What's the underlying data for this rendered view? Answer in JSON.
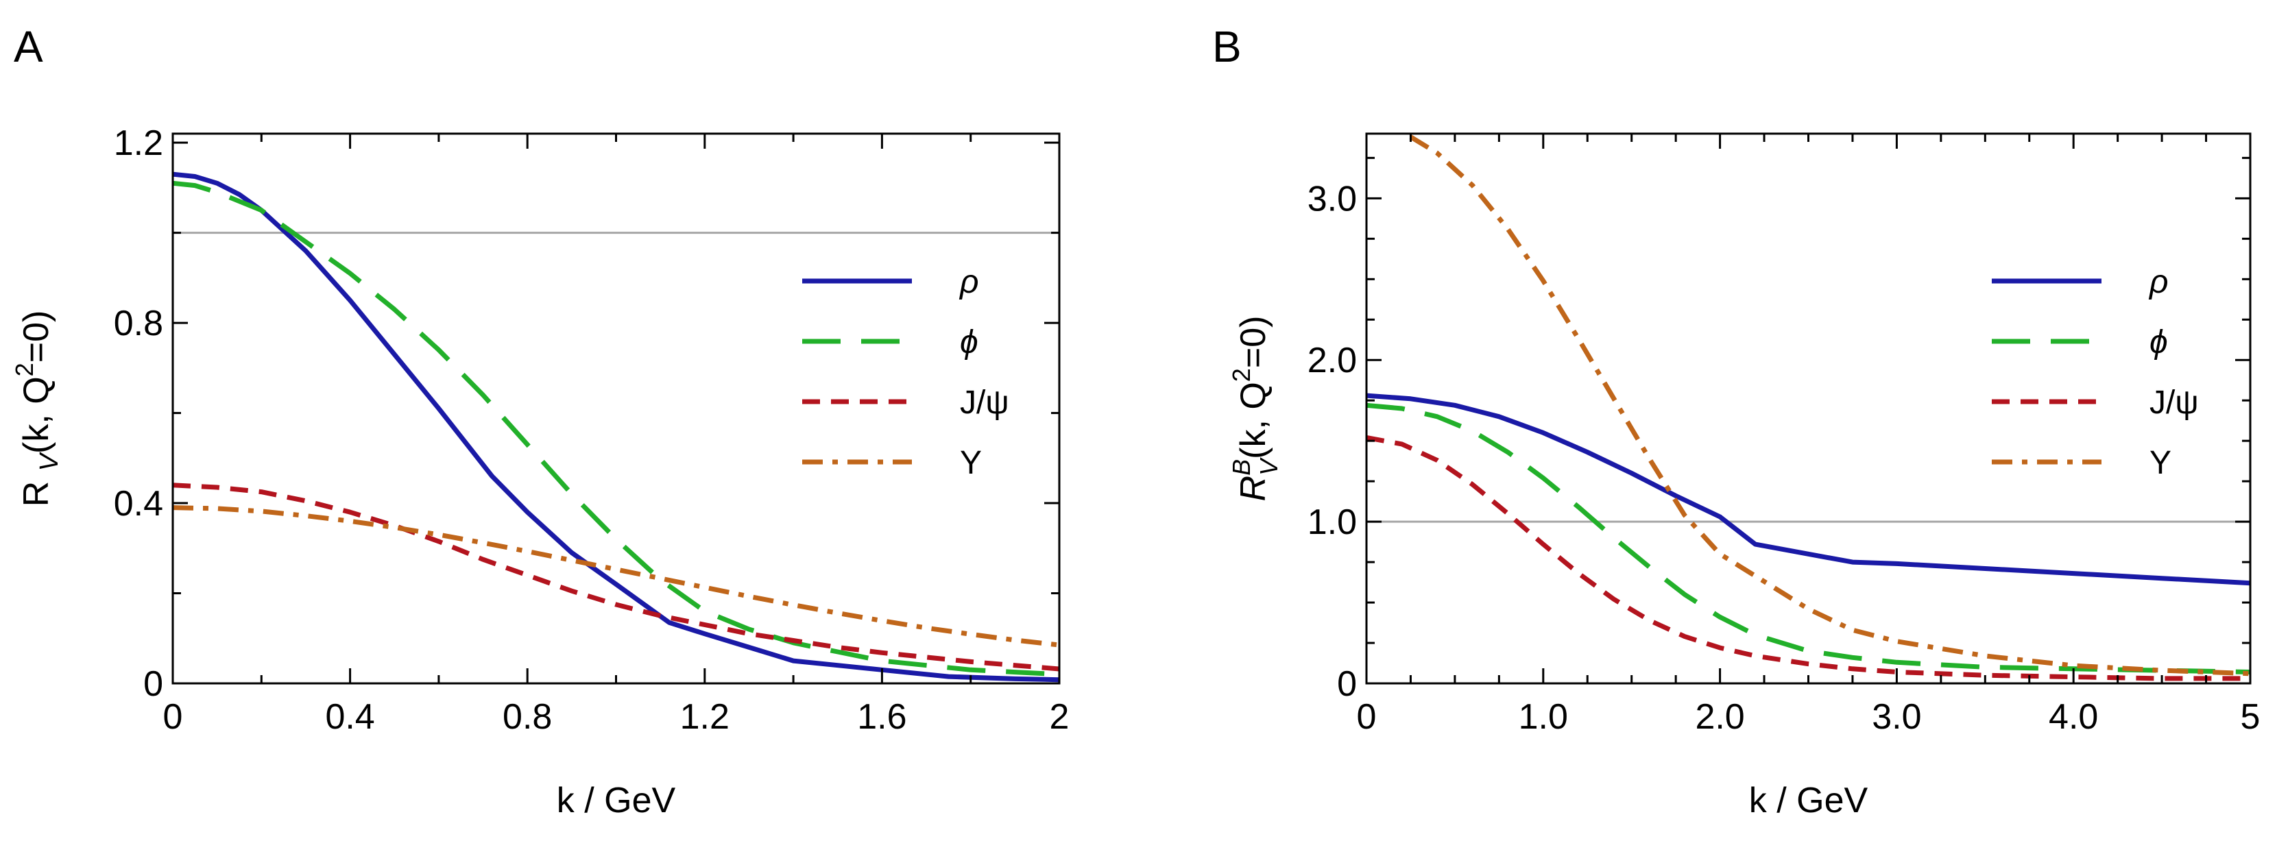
{
  "chart_data": [
    {
      "type": "line",
      "panel_label": "A",
      "xlabel": "k / GeV",
      "ylabel_main": "R",
      "ylabel_sub": "V",
      "ylabel_tail": "(k, Q",
      "ylabel_sup": "2",
      "ylabel_end": "=0)",
      "xlim": [
        0,
        2
      ],
      "ylim": [
        0,
        1.22
      ],
      "xticks": [
        0,
        0.4,
        0.8,
        1.2,
        1.6,
        2
      ],
      "xtick_labels": [
        "0",
        "0.4",
        "0.8",
        "1.2",
        "1.6",
        "2"
      ],
      "xminor": [
        0.2,
        0.6,
        1.0,
        1.4,
        1.8
      ],
      "yticks": [
        0,
        0.4,
        0.8,
        1.2
      ],
      "ytick_labels": [
        "0",
        "0.4",
        "0.8",
        "1.2"
      ],
      "yminor": [
        0.2,
        0.6,
        1.0
      ],
      "reference_y": 1.0,
      "legend_position": "right",
      "series": [
        {
          "name": "ρ",
          "color": "#1a1aa6",
          "style": "solid",
          "x": [
            0,
            0.05,
            0.1,
            0.15,
            0.2,
            0.3,
            0.4,
            0.5,
            0.6,
            0.72,
            0.8,
            0.9,
            1.0,
            1.12,
            1.2,
            1.3,
            1.4,
            1.5,
            1.6,
            1.75,
            1.9,
            2.0
          ],
          "y": [
            1.13,
            1.125,
            1.11,
            1.085,
            1.05,
            0.96,
            0.85,
            0.73,
            0.61,
            0.46,
            0.38,
            0.29,
            0.22,
            0.135,
            0.11,
            0.08,
            0.05,
            0.04,
            0.03,
            0.015,
            0.01,
            0.008
          ]
        },
        {
          "name": "ϕ",
          "color": "#22b02a",
          "style": "dashed",
          "x": [
            0,
            0.05,
            0.1,
            0.2,
            0.3,
            0.4,
            0.5,
            0.6,
            0.7,
            0.8,
            0.9,
            1.0,
            1.1,
            1.2,
            1.3,
            1.4,
            1.5,
            1.6,
            1.7,
            1.8,
            1.9,
            2.0
          ],
          "y": [
            1.11,
            1.105,
            1.09,
            1.05,
            0.98,
            0.91,
            0.83,
            0.74,
            0.64,
            0.53,
            0.42,
            0.32,
            0.23,
            0.16,
            0.12,
            0.09,
            0.07,
            0.05,
            0.04,
            0.03,
            0.025,
            0.02
          ]
        },
        {
          "name": "J/ψ",
          "color": "#b3141e",
          "style": "shortdash",
          "x": [
            0,
            0.1,
            0.2,
            0.3,
            0.4,
            0.5,
            0.6,
            0.7,
            0.8,
            0.9,
            1.0,
            1.1,
            1.2,
            1.3,
            1.4,
            1.5,
            1.6,
            1.7,
            1.8,
            1.9,
            2.0
          ],
          "y": [
            0.44,
            0.435,
            0.425,
            0.405,
            0.38,
            0.35,
            0.315,
            0.275,
            0.24,
            0.205,
            0.175,
            0.15,
            0.13,
            0.11,
            0.095,
            0.08,
            0.068,
            0.058,
            0.048,
            0.04,
            0.032
          ]
        },
        {
          "name": "Υ",
          "color": "#c0661a",
          "style": "dashdot",
          "x": [
            0,
            0.1,
            0.2,
            0.3,
            0.4,
            0.5,
            0.6,
            0.7,
            0.8,
            0.9,
            1.0,
            1.1,
            1.2,
            1.3,
            1.4,
            1.5,
            1.6,
            1.7,
            1.8,
            1.9,
            2.0
          ],
          "y": [
            0.39,
            0.388,
            0.382,
            0.372,
            0.36,
            0.346,
            0.33,
            0.312,
            0.293,
            0.273,
            0.253,
            0.233,
            0.213,
            0.193,
            0.174,
            0.156,
            0.139,
            0.123,
            0.109,
            0.096,
            0.085
          ]
        }
      ]
    },
    {
      "type": "line",
      "panel_label": "B",
      "xlabel": "k / GeV",
      "ylabel_main": "R",
      "ylabel_sup_B": "B",
      "ylabel_sub": "V",
      "ylabel_tail": "(k, Q",
      "ylabel_sup": "2",
      "ylabel_end": "=0)",
      "xlim": [
        0,
        5
      ],
      "ylim": [
        0,
        3.4
      ],
      "xticks": [
        0,
        1,
        2,
        3,
        4,
        5
      ],
      "xtick_labels": [
        "0",
        "1.0",
        "2.0",
        "3.0",
        "4.0",
        "5"
      ],
      "xminor": [
        0.25,
        0.5,
        0.75,
        1.25,
        1.5,
        1.75,
        2.25,
        2.5,
        2.75,
        3.25,
        3.5,
        3.75,
        4.25,
        4.5,
        4.75
      ],
      "yticks": [
        0,
        1,
        2,
        3
      ],
      "ytick_labels": [
        "0",
        "1.0",
        "2.0",
        "3.0"
      ],
      "yminor": [
        0.25,
        0.5,
        0.75,
        1.25,
        1.5,
        1.75,
        2.25,
        2.5,
        2.75,
        3.25
      ],
      "reference_y": 1.0,
      "legend_position": "right",
      "series": [
        {
          "name": "ρ",
          "color": "#1a1aa6",
          "style": "solid",
          "x": [
            0,
            0.25,
            0.5,
            0.75,
            1.0,
            1.25,
            1.5,
            1.75,
            2.0,
            2.2,
            2.5,
            2.75,
            3.0,
            3.5,
            4.0,
            4.5,
            5.0
          ],
          "y": [
            1.78,
            1.76,
            1.72,
            1.65,
            1.55,
            1.43,
            1.3,
            1.16,
            1.03,
            0.86,
            0.8,
            0.75,
            0.74,
            0.71,
            0.68,
            0.65,
            0.62
          ]
        },
        {
          "name": "ϕ",
          "color": "#22b02a",
          "style": "dashed",
          "x": [
            0,
            0.2,
            0.4,
            0.6,
            0.8,
            1.0,
            1.2,
            1.4,
            1.6,
            1.8,
            2.0,
            2.2,
            2.5,
            2.75,
            3.0,
            3.5,
            4.0,
            4.5,
            5.0
          ],
          "y": [
            1.72,
            1.7,
            1.65,
            1.56,
            1.43,
            1.27,
            1.09,
            0.9,
            0.72,
            0.55,
            0.41,
            0.3,
            0.2,
            0.16,
            0.13,
            0.1,
            0.09,
            0.08,
            0.07
          ]
        },
        {
          "name": "J/ψ",
          "color": "#b3141e",
          "style": "shortdash",
          "x": [
            0,
            0.2,
            0.4,
            0.6,
            0.8,
            1.0,
            1.2,
            1.4,
            1.6,
            1.8,
            2.0,
            2.2,
            2.5,
            2.75,
            3.0,
            3.5,
            4.0,
            4.5,
            5.0
          ],
          "y": [
            1.52,
            1.48,
            1.38,
            1.23,
            1.05,
            0.86,
            0.68,
            0.52,
            0.39,
            0.29,
            0.22,
            0.17,
            0.12,
            0.09,
            0.07,
            0.05,
            0.04,
            0.03,
            0.03
          ]
        },
        {
          "name": "Υ",
          "color": "#c0661a",
          "style": "dashdot",
          "x": [
            0.25,
            0.4,
            0.6,
            0.8,
            1.0,
            1.2,
            1.4,
            1.6,
            1.8,
            2.0,
            2.25,
            2.5,
            2.75,
            3.0,
            3.5,
            4.0,
            4.5,
            5.0
          ],
          "y": [
            3.38,
            3.28,
            3.08,
            2.81,
            2.49,
            2.13,
            1.76,
            1.39,
            1.04,
            0.8,
            0.63,
            0.46,
            0.33,
            0.26,
            0.17,
            0.11,
            0.08,
            0.06
          ]
        }
      ]
    }
  ]
}
